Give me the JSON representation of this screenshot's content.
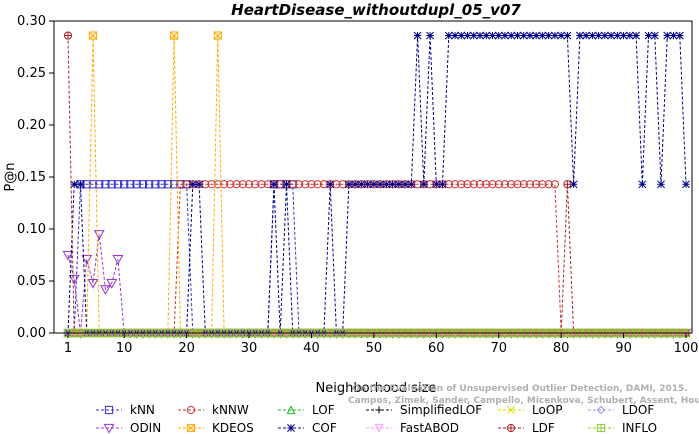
{
  "chart_data": {
    "type": "line",
    "title": "HeartDisease_withoutdupl_05_v07",
    "xlabel": "Neighborhood size",
    "ylabel": "P@n",
    "credit": "Campos, Zimek, Sander, Campello, Micenkova, Schubert, Assent, Houle",
    "credit2": "On the Evaluation of Unsupervised Outlier Detection, DAMI, 2015.",
    "xlim": [
      1,
      100
    ],
    "ylim": [
      0,
      0.3
    ],
    "xticks": [
      "1",
      "10",
      "20",
      "30",
      "40",
      "50",
      "60",
      "70",
      "80",
      "90",
      "100"
    ],
    "yticks": [
      "0.00",
      "0.05",
      "0.10",
      "0.15",
      "0.20",
      "0.25",
      "0.30"
    ],
    "grid": false,
    "legend_position": "bottom",
    "series": [
      {
        "name": "kNN",
        "color": "#3333cc",
        "marker": "square",
        "points": [
          [
            1,
            0
          ],
          [
            2,
            0
          ],
          [
            3,
            0.143
          ],
          [
            4,
            0.143
          ],
          [
            5,
            0.143
          ],
          [
            6,
            0.143
          ],
          [
            7,
            0.143
          ],
          [
            8,
            0.143
          ],
          [
            9,
            0.143
          ],
          [
            10,
            0.143
          ],
          [
            11,
            0.143
          ],
          [
            12,
            0.143
          ],
          [
            13,
            0.143
          ],
          [
            14,
            0.143
          ],
          [
            15,
            0.143
          ],
          [
            16,
            0.143
          ],
          [
            17,
            0.143
          ],
          [
            18,
            0.143
          ],
          [
            19,
            0.143
          ],
          [
            20,
            0.143
          ],
          [
            21,
            0
          ],
          [
            22,
            0
          ],
          [
            25,
            0
          ],
          [
            30,
            0
          ],
          [
            33,
            0
          ],
          [
            34,
            0.143
          ],
          [
            35,
            0.143
          ],
          [
            36,
            0.143
          ],
          [
            37,
            0.143
          ],
          [
            38,
            0
          ],
          [
            40,
            0
          ],
          [
            50,
            0
          ],
          [
            60,
            0
          ],
          [
            70,
            0
          ],
          [
            80,
            0
          ],
          [
            90,
            0
          ],
          [
            100,
            0
          ]
        ]
      },
      {
        "name": "kNNW",
        "color": "#cc3333",
        "marker": "circle",
        "points": [
          [
            1,
            0
          ],
          [
            5,
            0
          ],
          [
            10,
            0
          ],
          [
            15,
            0
          ],
          [
            18,
            0
          ],
          [
            19,
            0.143
          ],
          [
            20,
            0.143
          ],
          [
            25,
            0.143
          ],
          [
            30,
            0.143
          ],
          [
            35,
            0.143
          ],
          [
            40,
            0.143
          ],
          [
            45,
            0.143
          ],
          [
            50,
            0.143
          ],
          [
            55,
            0.143
          ],
          [
            60,
            0.143
          ],
          [
            65,
            0.143
          ],
          [
            70,
            0.143
          ],
          [
            75,
            0.143
          ],
          [
            79,
            0.143
          ],
          [
            80,
            0
          ],
          [
            81,
            0
          ],
          [
            90,
            0
          ],
          [
            100,
            0
          ]
        ]
      },
      {
        "name": "LOF",
        "color": "#22bb22",
        "marker": "triangle-up",
        "points": [
          [
            1,
            0
          ],
          [
            10,
            0
          ],
          [
            20,
            0
          ],
          [
            30,
            0
          ],
          [
            40,
            0
          ],
          [
            50,
            0
          ],
          [
            60,
            0
          ],
          [
            70,
            0
          ],
          [
            80,
            0
          ],
          [
            90,
            0
          ],
          [
            100,
            0
          ]
        ]
      },
      {
        "name": "SimplifiedLOF",
        "color": "#000000",
        "marker": "plus",
        "points": [
          [
            1,
            0
          ],
          [
            10,
            0
          ],
          [
            20,
            0
          ],
          [
            30,
            0
          ],
          [
            40,
            0
          ],
          [
            50,
            0
          ],
          [
            60,
            0
          ],
          [
            70,
            0
          ],
          [
            80,
            0
          ],
          [
            90,
            0
          ],
          [
            100,
            0
          ]
        ]
      },
      {
        "name": "LoOP",
        "color": "#dddd00",
        "marker": "x",
        "points": [
          [
            1,
            0
          ],
          [
            10,
            0
          ],
          [
            20,
            0
          ],
          [
            30,
            0
          ],
          [
            40,
            0
          ],
          [
            50,
            0
          ],
          [
            60,
            0
          ],
          [
            70,
            0
          ],
          [
            80,
            0
          ],
          [
            90,
            0
          ],
          [
            100,
            0
          ]
        ]
      },
      {
        "name": "LDOF",
        "color": "#9999ee",
        "marker": "diamond",
        "points": [
          [
            1,
            0
          ],
          [
            10,
            0
          ],
          [
            20,
            0
          ],
          [
            30,
            0
          ],
          [
            40,
            0
          ],
          [
            50,
            0
          ],
          [
            60,
            0
          ],
          [
            70,
            0
          ],
          [
            80,
            0
          ],
          [
            90,
            0
          ],
          [
            100,
            0
          ]
        ]
      },
      {
        "name": "ODIN",
        "color": "#9933cc",
        "marker": "triangle-down",
        "points": [
          [
            1,
            0.075
          ],
          [
            2,
            0.052
          ],
          [
            3,
            0
          ],
          [
            4,
            0.071
          ],
          [
            5,
            0.048
          ],
          [
            6,
            0.095
          ],
          [
            7,
            0.042
          ],
          [
            8,
            0.048
          ],
          [
            9,
            0.071
          ],
          [
            10,
            0
          ],
          [
            15,
            0
          ],
          [
            20,
            0
          ],
          [
            30,
            0
          ],
          [
            40,
            0
          ],
          [
            50,
            0
          ],
          [
            60,
            0
          ],
          [
            70,
            0
          ],
          [
            80,
            0
          ],
          [
            90,
            0
          ],
          [
            100,
            0
          ]
        ]
      },
      {
        "name": "KDEOS",
        "color": "#ffaa00",
        "marker": "square-x",
        "points": [
          [
            1,
            0
          ],
          [
            4,
            0
          ],
          [
            5,
            0.286
          ],
          [
            6,
            0
          ],
          [
            17,
            0
          ],
          [
            18,
            0.286
          ],
          [
            19,
            0
          ],
          [
            24,
            0
          ],
          [
            25,
            0.286
          ],
          [
            26,
            0
          ],
          [
            30,
            0
          ],
          [
            40,
            0
          ],
          [
            50,
            0
          ],
          [
            60,
            0
          ],
          [
            70,
            0
          ],
          [
            80,
            0
          ],
          [
            90,
            0
          ],
          [
            100,
            0
          ]
        ]
      },
      {
        "name": "COF",
        "color": "#000088",
        "marker": "asterisk",
        "points": [
          [
            1,
            0
          ],
          [
            2,
            0.143
          ],
          [
            3,
            0.143
          ],
          [
            4,
            0
          ],
          [
            20,
            0
          ],
          [
            21,
            0.143
          ],
          [
            22,
            0.143
          ],
          [
            23,
            0
          ],
          [
            33,
            0
          ],
          [
            34,
            0.143
          ],
          [
            35,
            0
          ],
          [
            36,
            0.143
          ],
          [
            37,
            0
          ],
          [
            42,
            0
          ],
          [
            43,
            0.143
          ],
          [
            44,
            0
          ],
          [
            45,
            0
          ],
          [
            46,
            0.143
          ],
          [
            50,
            0.143
          ],
          [
            55,
            0.143
          ],
          [
            56,
            0.143
          ],
          [
            57,
            0.286
          ],
          [
            58,
            0.143
          ],
          [
            59,
            0.286
          ],
          [
            60,
            0.143
          ],
          [
            61,
            0.143
          ],
          [
            62,
            0.286
          ],
          [
            65,
            0.286
          ],
          [
            70,
            0.286
          ],
          [
            75,
            0.286
          ],
          [
            80,
            0.286
          ],
          [
            81,
            0.286
          ],
          [
            82,
            0.143
          ],
          [
            83,
            0.286
          ],
          [
            88,
            0.286
          ],
          [
            92,
            0.286
          ],
          [
            93,
            0.143
          ],
          [
            94,
            0.286
          ],
          [
            95,
            0.286
          ],
          [
            96,
            0.143
          ],
          [
            97,
            0.286
          ],
          [
            98,
            0.286
          ],
          [
            99,
            0.286
          ],
          [
            100,
            0.143
          ]
        ]
      },
      {
        "name": "FastABOD",
        "color": "#ff99ff",
        "marker": "triangle-down-thin",
        "points": [
          [
            1,
            0
          ],
          [
            10,
            0
          ],
          [
            20,
            0
          ],
          [
            30,
            0
          ],
          [
            40,
            0
          ],
          [
            50,
            0
          ],
          [
            60,
            0
          ],
          [
            70,
            0
          ],
          [
            80,
            0
          ],
          [
            90,
            0
          ],
          [
            100,
            0
          ]
        ]
      },
      {
        "name": "LDF",
        "color": "#aa2222",
        "marker": "circle-plus",
        "points": [
          [
            1,
            0.286
          ],
          [
            2,
            0
          ],
          [
            10,
            0
          ],
          [
            20,
            0
          ],
          [
            30,
            0
          ],
          [
            40,
            0
          ],
          [
            50,
            0
          ],
          [
            60,
            0
          ],
          [
            70,
            0
          ],
          [
            80,
            0
          ],
          [
            81,
            0.143
          ],
          [
            82,
            0
          ],
          [
            90,
            0
          ],
          [
            100,
            0
          ]
        ]
      },
      {
        "name": "INFLO",
        "color": "#88cc33",
        "marker": "square-plus",
        "points": [
          [
            1,
            0
          ],
          [
            10,
            0
          ],
          [
            20,
            0
          ],
          [
            30,
            0
          ],
          [
            40,
            0
          ],
          [
            50,
            0
          ],
          [
            60,
            0
          ],
          [
            70,
            0
          ],
          [
            80,
            0
          ],
          [
            90,
            0
          ],
          [
            100,
            0
          ]
        ]
      }
    ]
  }
}
